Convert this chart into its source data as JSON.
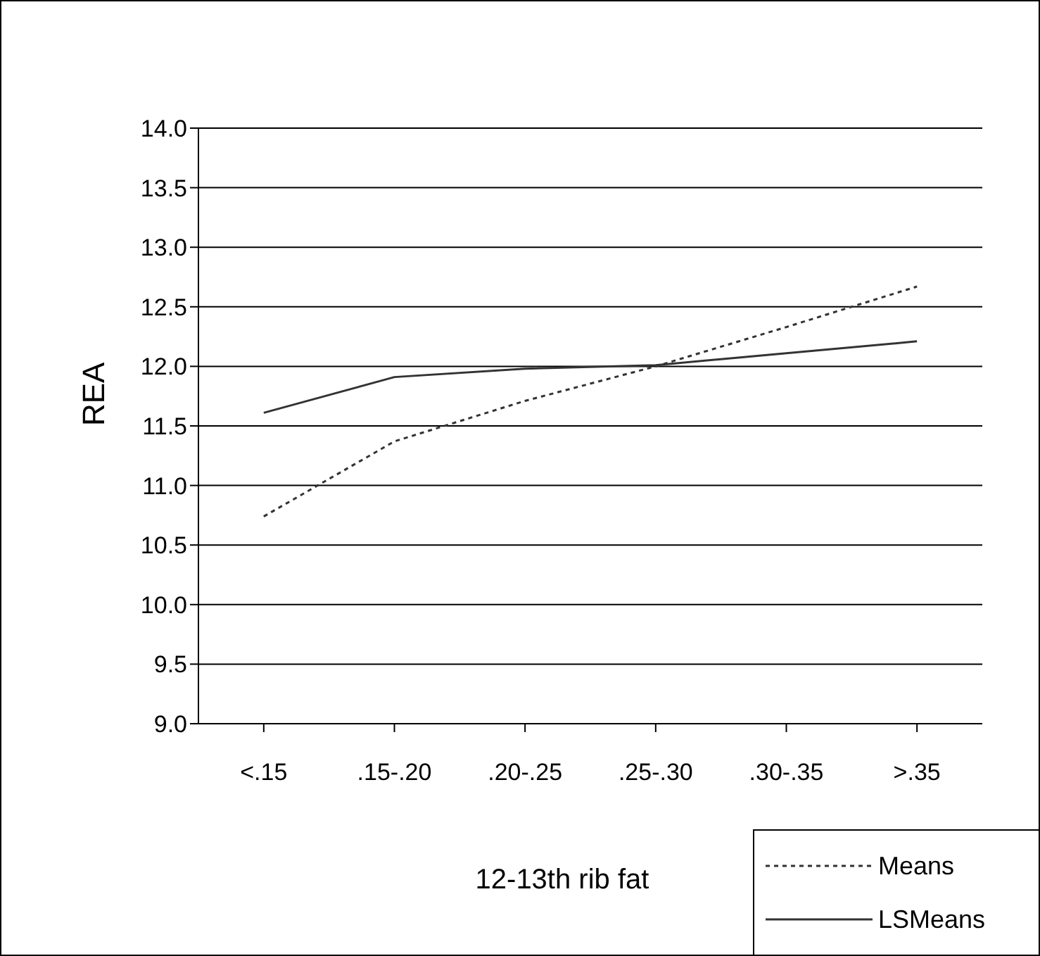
{
  "chart_data": {
    "type": "line",
    "xlabel": "12-13th rib fat",
    "ylabel": "REA",
    "categories": [
      "<.15",
      ".15-.20",
      ".20-.25",
      ".25-.30",
      ".30-.35",
      ">.35"
    ],
    "series": [
      {
        "name": "Means",
        "color": "#333333",
        "line_style": "dotted",
        "values": [
          10.74,
          11.37,
          11.71,
          12.0,
          12.33,
          12.67
        ]
      },
      {
        "name": "LSMeans",
        "color": "#333333",
        "line_style": "solid",
        "values": [
          11.61,
          11.91,
          11.98,
          12.01,
          12.11,
          12.21
        ]
      }
    ],
    "ylim": [
      9.0,
      14.0
    ],
    "yticks": [
      {
        "value": 9,
        "label": "9.0"
      },
      {
        "value": 9.5,
        "label": "9.5"
      },
      {
        "value": 10,
        "label": "10.0"
      },
      {
        "value": 10.5,
        "label": "10.5"
      },
      {
        "value": 11,
        "label": "11.0"
      },
      {
        "value": 11.5,
        "label": "11.5"
      },
      {
        "value": 12,
        "label": "12.0"
      },
      {
        "value": 12.5,
        "label": "12.5"
      },
      {
        "value": 13,
        "label": "13.0"
      },
      {
        "value": 13.5,
        "label": "13.5"
      },
      {
        "value": 14,
        "label": "14.0"
      }
    ],
    "grid": "y",
    "legend": "bottom right",
    "marker": "none"
  }
}
